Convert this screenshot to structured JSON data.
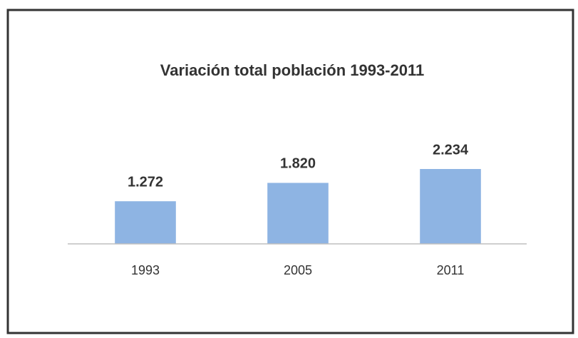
{
  "chart_data": {
    "type": "bar",
    "title": "Variación total población 1993-2011",
    "categories": [
      "1993",
      "2005",
      "2011"
    ],
    "values": [
      1272,
      1820,
      2234
    ],
    "value_labels": [
      "1.272",
      "1.820",
      "2.234"
    ],
    "color": "#8eb4e3"
  }
}
